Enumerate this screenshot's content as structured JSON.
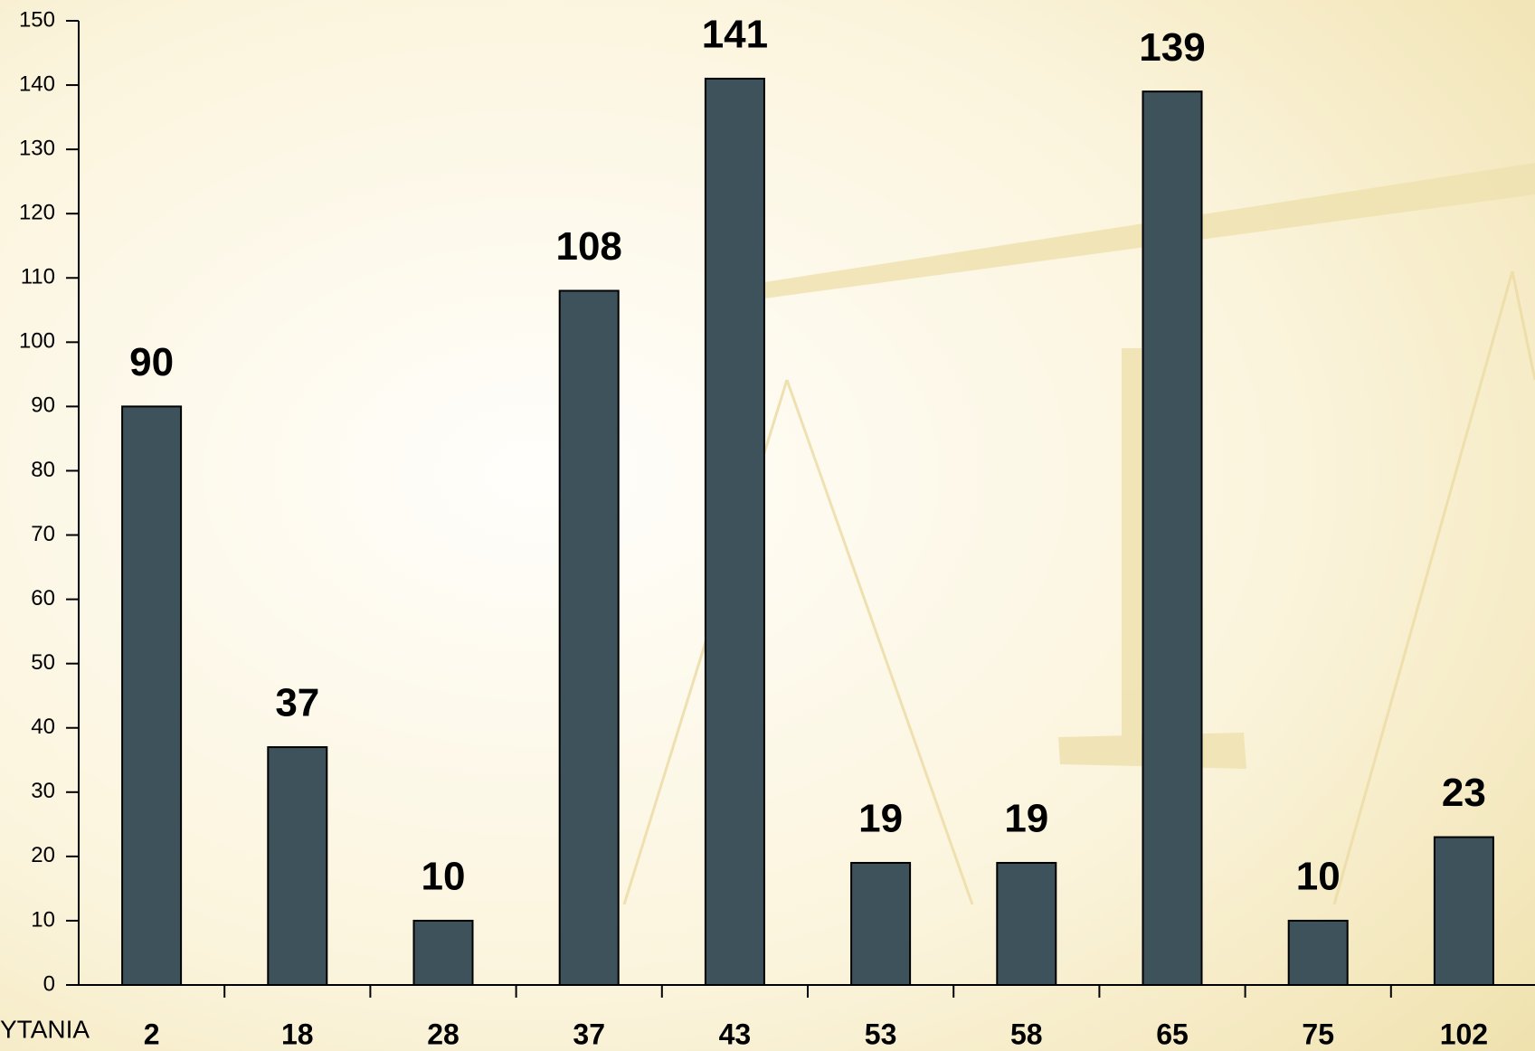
{
  "chart_data": {
    "type": "bar",
    "x_label": "YTANIA",
    "categories": [
      "2",
      "18",
      "28",
      "37",
      "43",
      "53",
      "58",
      "65",
      "75",
      "102"
    ],
    "values": [
      90,
      37,
      10,
      108,
      141,
      19,
      19,
      139,
      10,
      23
    ],
    "color": "#3e525c",
    "ylim": [
      0,
      150
    ],
    "yticks": [
      0,
      10,
      20,
      30,
      40,
      50,
      60,
      70,
      80,
      90,
      100,
      110,
      120,
      130,
      140,
      150
    ],
    "grid": false
  }
}
